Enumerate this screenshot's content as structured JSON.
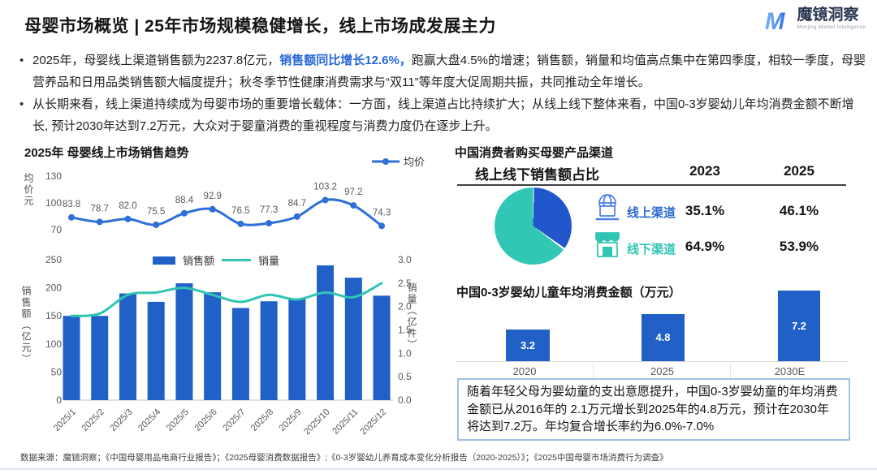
{
  "header": {
    "title": "母婴市场概览 | 25年市场规模稳健增长，线上市场成发展主力"
  },
  "logo": {
    "name": "魔镜洞察",
    "subtitle": "Moojing Market Intelligence"
  },
  "bullets": [
    {
      "segments": [
        {
          "text": "2025年，母婴线上渠道销售额为2237.8亿元，",
          "em": false
        },
        {
          "text": "销售额同比增长12.6%，",
          "em": true
        },
        {
          "text": "跑赢大盘4.5%的增速；销售额，销量和均值高点集中在第四季度，相较一季度，母婴营养品和日用品类销售额大幅度提升；秋冬季节性健康消费需求与“双11”等年度大促周期共振，共同推动全年增长。",
          "em": false
        }
      ]
    },
    {
      "segments": [
        {
          "text": "从长期来看，线上渠道持续成为母婴市场的重要增长载体：一方面，线上渠道占比持续扩大；从线上线下整体来看，中国0-3岁婴幼儿年均消费金额不断增长, 预计2030年达到7.2万元，大众对于婴童消费的重视程度与消费力度仍在逐步上升。",
          "em": false
        }
      ]
    }
  ],
  "colors": {
    "bar_blue": "#2160c6",
    "line_blue": "#2e6fd8",
    "teal": "#30c5b3",
    "highlight": "#2667d9",
    "pie_blue": "#2156cc",
    "pie_teal": "#32c7b5",
    "axis": "#d9d9d9",
    "tick": "#595959",
    "note_border": "#9dc3e6"
  },
  "chart_data": [
    {
      "id": "avg_price",
      "type": "line",
      "title": "2025年 母婴线上市场销售趋势",
      "legend": "均价",
      "ylabel": "均价元",
      "x": [
        "2025/1",
        "2025/2",
        "2025/3",
        "2025/4",
        "2025/5",
        "2025/6",
        "2025/7",
        "2025/8",
        "2025/9",
        "2025/10",
        "2025/11",
        "2025/12"
      ],
      "values": [
        83.8,
        78.7,
        82.0,
        75.5,
        88.4,
        92.9,
        76.5,
        77.3,
        84.7,
        103.2,
        97.2,
        74.3
      ],
      "labels": [
        "83.8",
        "78.7",
        "82.0",
        "75.5",
        "88.4",
        "92.9",
        "76.5",
        "77.3",
        "84.7",
        "103.2",
        "97.2",
        "74.3"
      ],
      "yticks": [
        70,
        100,
        130
      ],
      "ylim": [
        70,
        130
      ],
      "grid": false,
      "legend_position": "top-right"
    },
    {
      "id": "sales_volume",
      "type": "bar+line",
      "x": [
        "2025/1",
        "2025/2",
        "2025/3",
        "2025/4",
        "2025/5",
        "2025/6",
        "2025/7",
        "2025/8",
        "2025/9",
        "2025/10",
        "2025/11",
        "2025/12"
      ],
      "series": [
        {
          "name": "销售额",
          "type": "bar",
          "axis": "left",
          "values": [
            150,
            150,
            190,
            175,
            208,
            192,
            164,
            176,
            180,
            240,
            218,
            186
          ]
        },
        {
          "name": "销量",
          "type": "line",
          "axis": "right",
          "values": [
            1.8,
            1.85,
            2.25,
            2.3,
            2.4,
            2.25,
            2.1,
            2.25,
            2.15,
            2.3,
            2.2,
            2.5
          ]
        }
      ],
      "y_left": {
        "label": "销售额（亿元）",
        "ticks": [
          0,
          50,
          100,
          150,
          200,
          250
        ],
        "lim": [
          0,
          250
        ]
      },
      "y_right": {
        "label": "销量（亿件）",
        "ticks": [
          0,
          0.5,
          1,
          1.5,
          2,
          2.5,
          3
        ],
        "lim": [
          0,
          3
        ]
      },
      "grid": false,
      "legend_position": "top-center"
    },
    {
      "id": "channel_pie",
      "type": "pie",
      "slices": [
        {
          "label": "线上渠道",
          "value": 35.1
        },
        {
          "label": "线下渠道",
          "value": 64.9
        }
      ]
    },
    {
      "id": "consumption",
      "type": "bar",
      "title": "中国0-3岁婴幼儿童年均消费金额（万元）",
      "categories": [
        "2020",
        "2025",
        "2030E"
      ],
      "values": [
        3.2,
        4.8,
        7.2
      ],
      "labels": [
        "3.2",
        "4.8",
        "7.2"
      ],
      "ylim": [
        0,
        7.6
      ],
      "grid": false
    }
  ],
  "channel_section": {
    "title": "中国消费者购买母婴产品渠道",
    "table_header": "线上线下销售额占比",
    "col_2023": "2023",
    "col_2025": "2025",
    "rows": [
      {
        "label": "线上渠道",
        "v2023": "35.1%",
        "v2025": "46.1%"
      },
      {
        "label": "线下渠道",
        "v2023": "64.9%",
        "v2025": "53.9%"
      }
    ]
  },
  "note_box": "随着年轻父母为婴幼童的支出意愿提升，中国0-3岁婴幼童的年均消费金额已从2016年的 2.1万元增长到2025年的4.8万元，预计在2030年将达到7.2万。年均复合增长率约为6.0%-7.0%",
  "footer": "数据来源：魔镜洞察；《中国母婴用品电商行业报告》；《2025母婴消费数据报告》;《0-3岁婴幼儿养育成本变化分析报告（2020-2025）》；《2025中国母婴市场消费行为调查》"
}
